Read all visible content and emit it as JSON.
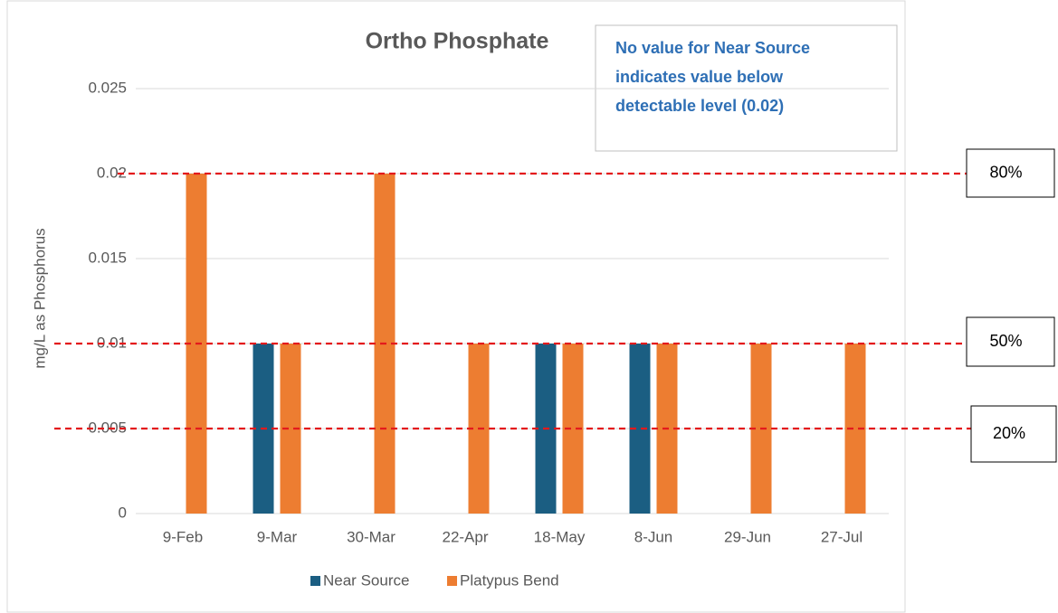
{
  "chart_data": {
    "type": "bar",
    "title": "Ortho Phosphate",
    "y_label": "mg/L as Phosphorus",
    "note": [
      "No value for Near Source",
      "indicates value below",
      "detectable level (0.02)"
    ],
    "categories": [
      "9-Feb",
      "9-Mar",
      "30-Mar",
      "22-Apr",
      "18-May",
      "8-Jun",
      "29-Jun",
      "27-Jul"
    ],
    "series": [
      {
        "name": "Near Source",
        "color": "#1b5e82",
        "values": [
          null,
          0.01,
          null,
          null,
          0.01,
          0.01,
          null,
          null
        ]
      },
      {
        "name": "Platypus Bend",
        "color": "#ed7d31",
        "values": [
          0.02,
          0.01,
          0.02,
          0.01,
          0.01,
          0.01,
          0.01,
          0.01
        ]
      }
    ],
    "ylim": [
      0,
      0.025
    ],
    "yticks": [
      0,
      0.005,
      0.01,
      0.015,
      0.02,
      0.025
    ],
    "grid": true,
    "reference_lines": [
      {
        "label": "80%",
        "value": 0.02
      },
      {
        "label": "50%",
        "value": 0.01
      },
      {
        "label": "20%",
        "value": 0.005
      }
    ]
  }
}
